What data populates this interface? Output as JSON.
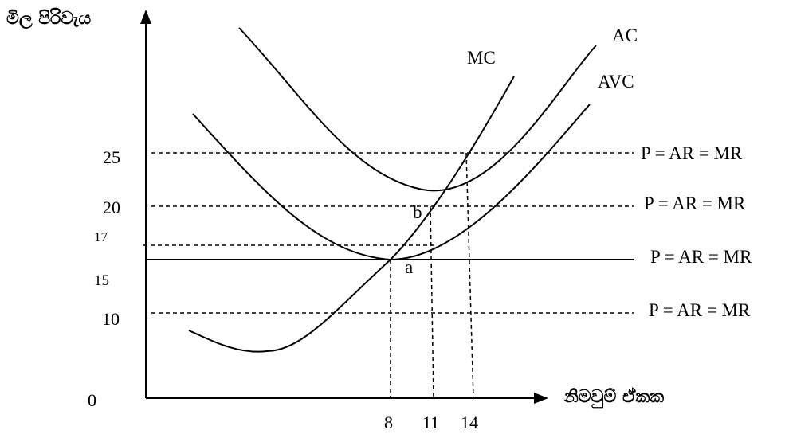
{
  "axes": {
    "y_label": "මිල පිරිවැය",
    "x_label": "නිමවුම් ඒකක",
    "origin_label": "0",
    "y_ticks": [
      "25",
      "20",
      "17",
      "15",
      "10"
    ],
    "x_ticks": [
      "8",
      "11",
      "14"
    ]
  },
  "curves": {
    "mc": "MC",
    "ac": "AC",
    "avc": "AVC"
  },
  "price_lines": {
    "p25": "P = AR = MR",
    "p20": "P = AR = MR",
    "p15": "P = AR = MR",
    "p10": "P = AR = MR"
  },
  "points": {
    "a": "a",
    "b": "b"
  }
}
